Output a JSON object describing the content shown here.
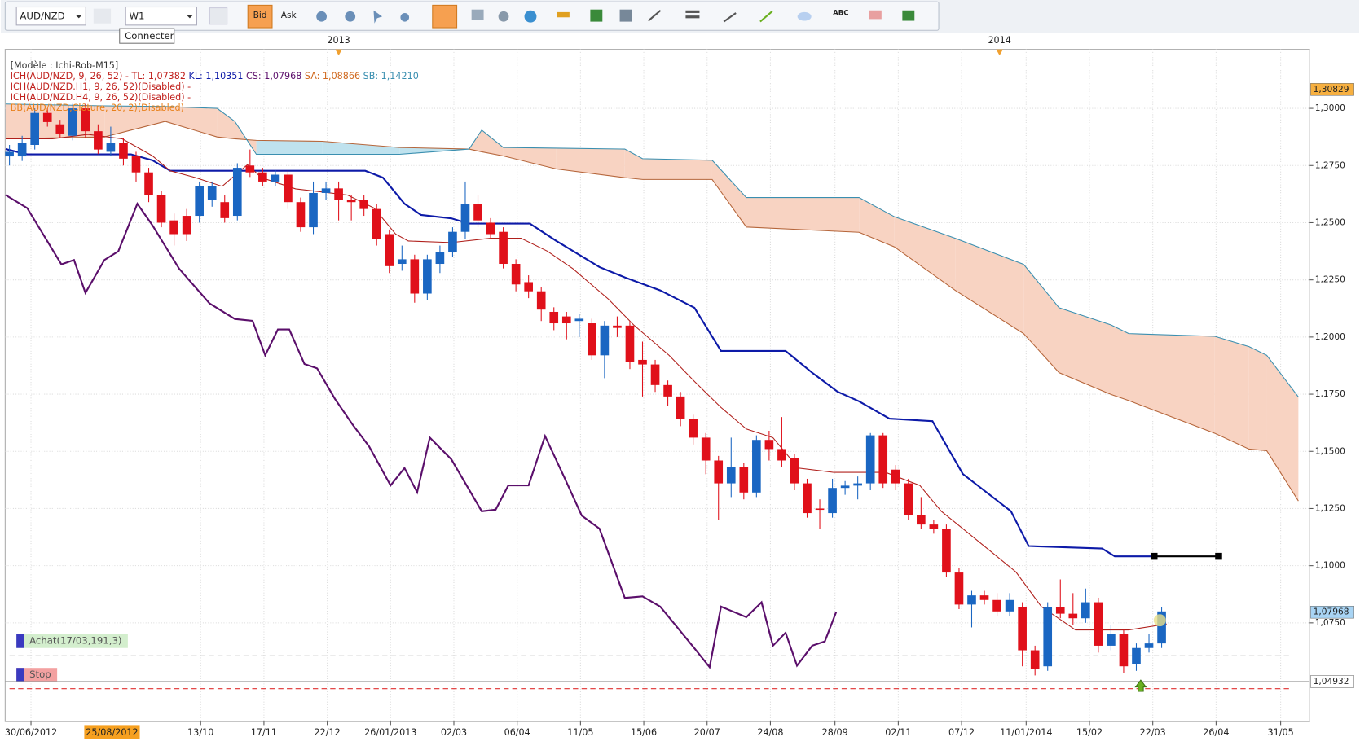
{
  "toolbar": {
    "symbol": "AUD/NZD",
    "timeframe": "W1",
    "bid": "Bid",
    "ask": "Ask",
    "text_tool": "ABC",
    "tooltip": "Connecter"
  },
  "chart_data": {
    "type": "candlestick",
    "open": [
      1.279,
      1.279,
      1.284,
      1.298,
      1.293,
      1.288,
      1.3,
      1.29,
      1.281,
      1.285,
      1.279,
      1.272,
      1.262,
      1.251,
      1.253,
      1.253,
      1.26,
      1.259,
      1.253,
      1.275,
      1.272,
      1.268,
      1.271,
      1.259,
      1.248,
      1.263,
      1.265,
      1.26,
      1.26,
      1.256,
      1.245,
      1.232,
      1.234,
      1.219,
      1.232,
      1.237,
      1.246,
      1.258,
      1.25,
      1.246,
      1.232,
      1.224,
      1.22,
      1.211,
      1.209,
      1.207,
      1.206,
      1.192,
      1.205,
      1.205,
      1.19,
      1.188,
      1.179,
      1.174,
      1.164,
      1.156,
      1.146,
      1.136,
      1.143,
      1.132,
      1.155,
      1.151,
      1.147,
      1.136,
      1.125,
      1.123,
      1.134,
      1.135,
      1.136,
      1.157,
      1.142,
      1.136,
      1.122,
      1.118,
      1.116,
      1.097,
      1.083,
      1.087,
      1.085,
      1.08,
      1.082,
      1.063,
      1.056,
      1.082,
      1.079,
      1.077,
      1.084,
      1.065,
      1.07,
      1.057,
      1.064,
      1.066
    ],
    "high": [
      1.284,
      1.288,
      1.3,
      1.3,
      1.295,
      1.302,
      1.302,
      1.293,
      1.292,
      1.287,
      1.281,
      1.274,
      1.264,
      1.254,
      1.256,
      1.268,
      1.268,
      1.262,
      1.276,
      1.282,
      1.274,
      1.273,
      1.273,
      1.261,
      1.268,
      1.268,
      1.268,
      1.262,
      1.262,
      1.258,
      1.247,
      1.24,
      1.236,
      1.236,
      1.24,
      1.248,
      1.268,
      1.262,
      1.252,
      1.248,
      1.234,
      1.227,
      1.222,
      1.213,
      1.211,
      1.21,
      1.208,
      1.207,
      1.209,
      1.207,
      1.198,
      1.19,
      1.181,
      1.176,
      1.166,
      1.158,
      1.148,
      1.156,
      1.145,
      1.157,
      1.159,
      1.165,
      1.149,
      1.138,
      1.129,
      1.138,
      1.137,
      1.139,
      1.158,
      1.158,
      1.144,
      1.138,
      1.13,
      1.12,
      1.118,
      1.099,
      1.089,
      1.089,
      1.088,
      1.088,
      1.084,
      1.065,
      1.084,
      1.094,
      1.088,
      1.09,
      1.086,
      1.074,
      1.072,
      1.066,
      1.07,
      1.082
    ],
    "low": [
      1.275,
      1.277,
      1.282,
      1.292,
      1.287,
      1.286,
      1.287,
      1.28,
      1.279,
      1.275,
      1.268,
      1.259,
      1.248,
      1.24,
      1.242,
      1.25,
      1.257,
      1.25,
      1.251,
      1.27,
      1.266,
      1.266,
      1.256,
      1.246,
      1.245,
      1.26,
      1.251,
      1.251,
      1.253,
      1.24,
      1.228,
      1.229,
      1.215,
      1.216,
      1.228,
      1.235,
      1.243,
      1.248,
      1.243,
      1.23,
      1.22,
      1.217,
      1.207,
      1.203,
      1.199,
      1.2,
      1.19,
      1.182,
      1.2,
      1.186,
      1.174,
      1.176,
      1.17,
      1.161,
      1.153,
      1.14,
      1.12,
      1.13,
      1.129,
      1.13,
      1.146,
      1.143,
      1.133,
      1.121,
      1.116,
      1.121,
      1.131,
      1.129,
      1.133,
      1.134,
      1.133,
      1.12,
      1.116,
      1.114,
      1.095,
      1.081,
      1.073,
      1.083,
      1.078,
      1.078,
      1.056,
      1.052,
      1.054,
      1.077,
      1.074,
      1.075,
      1.062,
      1.063,
      1.053,
      1.054,
      1.062,
      1.064
    ],
    "close": [
      1.281,
      1.285,
      1.298,
      1.294,
      1.289,
      1.3,
      1.29,
      1.282,
      1.285,
      1.278,
      1.272,
      1.262,
      1.25,
      1.245,
      1.245,
      1.266,
      1.266,
      1.252,
      1.274,
      1.272,
      1.268,
      1.271,
      1.259,
      1.248,
      1.263,
      1.265,
      1.26,
      1.259,
      1.256,
      1.243,
      1.231,
      1.234,
      1.219,
      1.234,
      1.237,
      1.246,
      1.258,
      1.251,
      1.245,
      1.232,
      1.223,
      1.22,
      1.212,
      1.206,
      1.206,
      1.208,
      1.192,
      1.205,
      1.204,
      1.189,
      1.188,
      1.179,
      1.174,
      1.164,
      1.156,
      1.146,
      1.136,
      1.143,
      1.132,
      1.155,
      1.151,
      1.146,
      1.136,
      1.123,
      1.125,
      1.134,
      1.135,
      1.136,
      1.157,
      1.136,
      1.136,
      1.122,
      1.118,
      1.116,
      1.097,
      1.083,
      1.087,
      1.085,
      1.08,
      1.085,
      1.063,
      1.055,
      1.082,
      1.079,
      1.077,
      1.084,
      1.065,
      1.07,
      1.056,
      1.064,
      1.066,
      1.08
    ],
    "up_color": "#1a66c2",
    "down_color": "#e0101a",
    "xlim": [
      -0.34,
      102.7
    ],
    "xticks": [
      {
        "value": 1.7,
        "label": "30/06/2012"
      },
      {
        "value": 15.1,
        "label": "13/10"
      },
      {
        "value": 20.1,
        "label": "17/11"
      },
      {
        "value": 25.1,
        "label": "22/12"
      },
      {
        "value": 30.1,
        "label": "26/01/2013"
      },
      {
        "value": 35.1,
        "label": "02/03"
      },
      {
        "value": 40.1,
        "label": "06/04"
      },
      {
        "value": 45.1,
        "label": "11/05"
      },
      {
        "value": 50.1,
        "label": "15/06"
      },
      {
        "value": 55.1,
        "label": "20/07"
      },
      {
        "value": 60.1,
        "label": "24/08"
      },
      {
        "value": 65.2,
        "label": "28/09"
      },
      {
        "value": 70.2,
        "label": "02/11"
      },
      {
        "value": 75.2,
        "label": "07/12"
      },
      {
        "value": 80.3,
        "label": "11/01/2014"
      },
      {
        "value": 85.3,
        "label": "15/02"
      },
      {
        "value": 90.3,
        "label": "22/03"
      },
      {
        "value": 95.3,
        "label": "26/04"
      },
      {
        "value": 100.4,
        "label": "31/05"
      }
    ],
    "crosshair_label": {
      "value": 8.1,
      "label": "25/08/2012"
    },
    "year_labels": [
      {
        "value": 26.0,
        "label": "2013"
      },
      {
        "value": 78.2,
        "label": "2014"
      }
    ],
    "ylim": [
      1.0318,
      1.3258
    ],
    "yticks": [
      {
        "value": 1.3,
        "label": "1,3000"
      },
      {
        "value": 1.275,
        "label": "1,2750"
      },
      {
        "value": 1.25,
        "label": "1,2500"
      },
      {
        "value": 1.225,
        "label": "1,2250"
      },
      {
        "value": 1.2,
        "label": "1,2000"
      },
      {
        "value": 1.175,
        "label": "1,1750"
      },
      {
        "value": 1.15,
        "label": "1,1500"
      },
      {
        "value": 1.125,
        "label": "1,1250"
      },
      {
        "value": 1.1,
        "label": "1,1000"
      },
      {
        "value": 1.075,
        "label": "1,0750"
      }
    ],
    "grid": true,
    "cloud": {
      "x": [
        -0.3,
        7.5,
        12.3,
        16.4,
        17.8,
        19.5,
        24.7,
        30.8,
        36.3,
        37.3,
        39.0,
        43.2,
        48.6,
        50.0,
        55.5,
        58.2,
        67.1,
        69.9,
        74.7,
        80.1,
        82.9,
        87.0,
        88.4,
        95.2,
        97.9,
        99.3,
        101.8
      ],
      "span_a": [
        1.2867,
        1.2875,
        1.2943,
        1.2875,
        1.2867,
        1.286,
        1.2856,
        1.2829,
        1.2822,
        1.281,
        1.2792,
        1.2735,
        1.2697,
        1.2689,
        1.2689,
        1.2481,
        1.2458,
        1.2394,
        1.2204,
        1.2015,
        1.1844,
        1.1749,
        1.1722,
        1.1579,
        1.151,
        1.1503,
        1.1283
      ],
      "span_b": [
        1.3019,
        1.3011,
        1.3008,
        1.3,
        1.2943,
        1.2799,
        1.2799,
        1.2799,
        1.2822,
        1.2905,
        1.2829,
        1.2826,
        1.2822,
        1.278,
        1.2773,
        1.261,
        1.261,
        1.2526,
        1.2432,
        1.2318,
        1.2128,
        1.2053,
        1.2015,
        1.2003,
        1.1958,
        1.192,
        1.1738
      ],
      "up_color": "#f8d3c2",
      "down_color": "#bfe2ee",
      "span_a_color": "#b5653a",
      "span_b_color": "#3a8fb0"
    },
    "lines": [
      {
        "color": "#0d1aa8",
        "width": 2,
        "x": [
          -0.3,
          1.4,
          9.6,
          11.3,
          12.7,
          19.2,
          28.1,
          29.5,
          31.2,
          32.5,
          34.9,
          36.3,
          41.1,
          43.2,
          46.6,
          48.6,
          51.4,
          54.1,
          56.2,
          61.3,
          63.4,
          65.4,
          67.1,
          69.5,
          72.9,
          75.3,
          79.1,
          80.5,
          86.3,
          87.3,
          90.4
        ],
        "values": [
          1.2822,
          1.2799,
          1.2799,
          1.2773,
          1.2727,
          1.2727,
          1.2727,
          1.2697,
          1.2583,
          1.2534,
          1.2519,
          1.2496,
          1.2496,
          1.242,
          1.2306,
          1.2261,
          1.2204,
          1.2128,
          1.1939,
          1.1939,
          1.1844,
          1.1761,
          1.1719,
          1.1643,
          1.1632,
          1.1401,
          1.1238,
          1.1086,
          1.1075,
          1.1041,
          1.1041
        ]
      },
      {
        "color": "#b0201c",
        "width": 1,
        "x": [
          -0.3,
          3.4,
          6.2,
          8.9,
          11.3,
          12.7,
          14.7,
          16.8,
          18.8,
          19.9,
          22.6,
          26.7,
          28.8,
          30.5,
          31.5,
          34.9,
          38.0,
          40.4,
          42.5,
          44.5,
          47.3,
          49.3,
          52.1,
          54.1,
          56.2,
          58.2,
          60.3,
          62.3,
          65.1,
          69.2,
          71.9,
          73.6,
          75.3,
          77.4,
          79.5,
          81.5,
          84.2,
          88.4,
          91.4
        ],
        "values": [
          1.2867,
          1.2867,
          1.2886,
          1.2867,
          1.2792,
          1.2727,
          1.2697,
          1.2659,
          1.2754,
          1.2697,
          1.2648,
          1.2621,
          1.2564,
          1.245,
          1.242,
          1.2413,
          1.2432,
          1.2432,
          1.2375,
          1.2299,
          1.2166,
          1.2053,
          1.192,
          1.1806,
          1.1692,
          1.1598,
          1.156,
          1.1427,
          1.1408,
          1.1408,
          1.1351,
          1.1238,
          1.1162,
          1.1067,
          1.0972,
          1.0821,
          1.0719,
          1.0719,
          1.0745
        ]
      },
      {
        "color": "#5b0f6b",
        "width": 2,
        "x": [
          -0.3,
          1.4,
          4.1,
          5.1,
          6.0,
          7.5,
          8.6,
          10.1,
          11.3,
          13.4,
          15.8,
          17.8,
          19.2,
          20.2,
          21.2,
          22.1,
          23.3,
          24.3,
          25.7,
          27.1,
          28.4,
          30.1,
          31.2,
          32.2,
          33.2,
          34.9,
          37.3,
          38.4,
          39.4,
          41.0,
          42.3,
          43.8,
          45.2,
          46.6,
          48.6,
          50.0,
          51.4,
          54.1,
          55.3,
          56.2,
          58.2,
          59.4,
          60.3,
          61.3,
          62.2,
          63.4,
          64.4,
          65.3
        ],
        "values": [
          1.2621,
          1.2564,
          1.2318,
          1.2337,
          1.2193,
          1.2337,
          1.2375,
          1.2583,
          1.2488,
          1.2299,
          1.2147,
          1.2079,
          1.2071,
          1.192,
          1.2033,
          1.2033,
          1.1882,
          1.1863,
          1.173,
          1.1617,
          1.1522,
          1.1351,
          1.1427,
          1.1321,
          1.156,
          1.1465,
          1.1238,
          1.1245,
          1.1351,
          1.1351,
          1.1567,
          1.1389,
          1.1219,
          1.1162,
          1.0859,
          1.0866,
          1.0821,
          1.0639,
          1.0556,
          1.0821,
          1.0775,
          1.084,
          1.065,
          1.0707,
          1.0563,
          1.065,
          1.0669,
          1.0798
        ]
      },
      {
        "color": "#000000",
        "width": 2,
        "markers": true,
        "x": [
          90.4,
          95.5
        ],
        "values": [
          1.1041,
          1.1041
        ]
      }
    ],
    "legend": [
      [
        {
          "text": "[Modèle : Ichi-Rob-M15]",
          "color": "#333333"
        }
      ],
      [
        {
          "text": "ICH(AUD/NZD, 9, 26, 52) - ",
          "color": "#c0201c"
        },
        {
          "text": "TL: 1,07382 ",
          "color": "#c0201c"
        },
        {
          "text": "KL: 1,10351 ",
          "color": "#0d1aa8"
        },
        {
          "text": "CS: 1,07968 ",
          "color": "#5b0f6b"
        },
        {
          "text": "SA: 1,08866 ",
          "color": "#d06a20"
        },
        {
          "text": "SB: 1,14210",
          "color": "#3a8fb0"
        }
      ],
      [
        {
          "text": "ICH(AUD/NZD.H1, 9, 26, 52)(Disabled) -",
          "color": "#c0201c"
        }
      ],
      [
        {
          "text": "ICH(AUD/NZD.H4, 9, 26, 52)(Disabled) -",
          "color": "#c0201c"
        }
      ],
      [
        {
          "text": "BB(AUD/NZD,Clôture, 20, 2)(Disabled)",
          "color": "#e8801a"
        }
      ]
    ],
    "price_labels": [
      {
        "value": 1.30829,
        "label": "1,30829",
        "color": "#f7b040"
      },
      {
        "value": 1.07968,
        "label": "1,07968",
        "color": "#a8d4f4"
      },
      {
        "value": 1.04932,
        "label": "1,04932",
        "color": "#ffffff"
      }
    ],
    "orders": [
      {
        "label": "Achat(17/03,191,3)",
        "value": 1.0606,
        "color": "#c8eac0",
        "line_color": "#b0b0b0"
      },
      {
        "label": "Stop",
        "value": 1.0462,
        "color": "#f08a8a",
        "line_color": "#e03030"
      }
    ]
  }
}
